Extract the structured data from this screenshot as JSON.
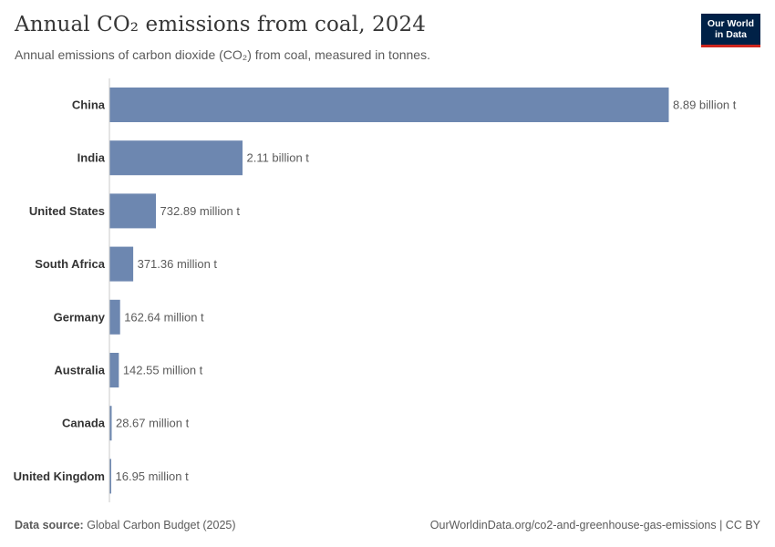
{
  "header": {
    "title": "Annual CO₂ emissions from coal, 2024",
    "subtitle": "Annual emissions of carbon dioxide (CO₂) from coal, measured in tonnes."
  },
  "logo": {
    "line1": "Our World",
    "line2": "in Data"
  },
  "footer": {
    "source_label": "Data source:",
    "source_value": "Global Carbon Budget (2025)",
    "url_license": "OurWorldinData.org/co2-and-greenhouse-gas-emissions | CC BY"
  },
  "colors": {
    "bar": "#6d87b0",
    "axis": "#c8c8c8",
    "label": "#333333",
    "value": "#5b5b5b"
  },
  "chart_data": {
    "type": "bar",
    "orientation": "horizontal",
    "title": "Annual CO₂ emissions from coal, 2024",
    "unit": "tonnes",
    "categories": [
      "China",
      "India",
      "United States",
      "South Africa",
      "Germany",
      "Australia",
      "Canada",
      "United Kingdom"
    ],
    "values": [
      8890000000,
      2110000000,
      732890000,
      371360000,
      162640000,
      142550000,
      28670000,
      16950000
    ],
    "value_labels": [
      "8.89 billion t",
      "2.11 billion t",
      "732.89 million t",
      "371.36 million t",
      "162.64 million t",
      "142.55 million t",
      "28.67 million t",
      "16.95 million t"
    ],
    "xlim": [
      0,
      8890000000
    ]
  }
}
